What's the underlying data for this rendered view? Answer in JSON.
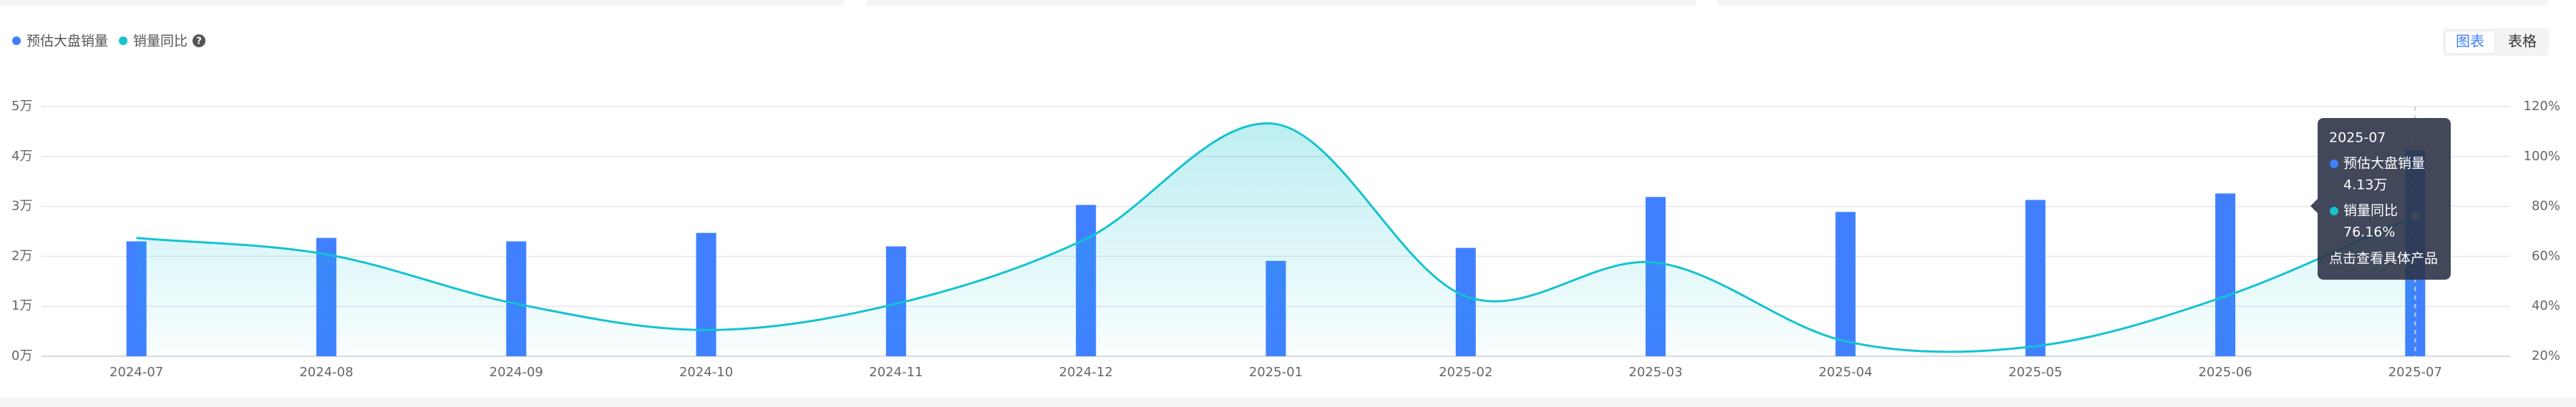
{
  "chart_data": {
    "type": "bar-line",
    "legend": "top-left",
    "view_buttons": [
      "图表",
      "表格"
    ],
    "categories": [
      "2024-07",
      "2024-08",
      "2024-09",
      "2024-10",
      "2024-11",
      "2024-12",
      "2025-01",
      "2025-02",
      "2025-03",
      "2025-04",
      "2025-05",
      "2025-06",
      "2025-07"
    ],
    "series": [
      {
        "name": "预估大盘销量",
        "color": "#4080ff",
        "type": "bar",
        "values": [
          2.3,
          2.37,
          2.3,
          2.47,
          2.2,
          3.03,
          1.91,
          2.17,
          3.19,
          2.89,
          3.13,
          3.26,
          4.13
        ]
      },
      {
        "name": "销量同比",
        "color": "#14c3d0",
        "type": "line",
        "axis": "y2",
        "values": [
          67.4,
          60.8,
          41,
          30.5,
          41,
          67,
          113,
          44,
          57.5,
          26,
          24,
          44,
          76.16
        ]
      }
    ],
    "ylim": [
      0,
      5
    ],
    "yticks": [
      {
        "value": 0,
        "label": "0万"
      },
      {
        "value": 1,
        "label": "1万"
      },
      {
        "value": 2,
        "label": "2万"
      },
      {
        "value": 3,
        "label": "3万"
      },
      {
        "value": 4,
        "label": "4万"
      },
      {
        "value": 5,
        "label": "5万"
      }
    ],
    "y2lim": [
      20,
      120
    ],
    "y2ticks": [
      {
        "value": 20,
        "label": "20%"
      },
      {
        "value": 40,
        "label": "40%"
      },
      {
        "value": 60,
        "label": "60%"
      },
      {
        "value": 80,
        "label": "80%"
      },
      {
        "value": 100,
        "label": "100%"
      },
      {
        "value": 120,
        "label": "120%"
      }
    ],
    "grid": true,
    "tooltip": {
      "index": 12,
      "value_labels": [
        "4.13万",
        "76.16%"
      ],
      "action": "点击查看具体产品"
    }
  }
}
